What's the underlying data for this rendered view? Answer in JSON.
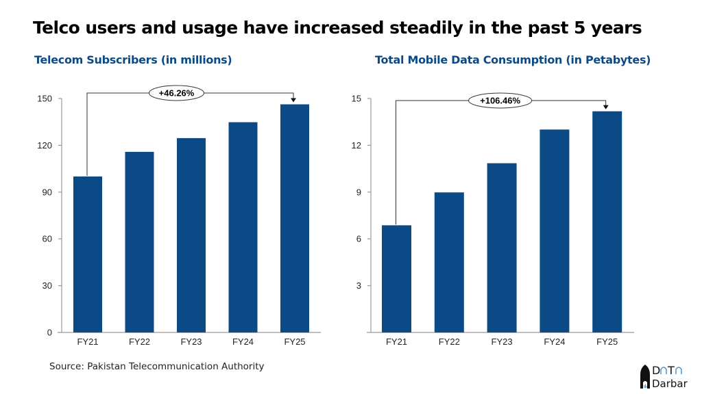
{
  "title": "Telco users and usage have increased steadily in the past 5 years",
  "source": "Source: Pakistan Telecommunication Authority",
  "logo": {
    "line1": "DaTa",
    "line2": "Darbar"
  },
  "colors": {
    "bar": "#0b4a86",
    "title_blue": "#0b4a86",
    "axis": "#999999"
  },
  "chart_data": [
    {
      "type": "bar",
      "title": "Telecom Subscribers (in millions)",
      "xlabel": "",
      "ylabel": "",
      "categories": [
        "FY21",
        "FY22",
        "FY23",
        "FY24",
        "FY25"
      ],
      "values": [
        100.0,
        115.8,
        124.6,
        134.8,
        146.26
      ],
      "ylim": [
        0,
        150
      ],
      "yticks": [
        0,
        30,
        60,
        90,
        120,
        150
      ],
      "ytick_labels": [
        "0",
        "30",
        "60",
        "90",
        "120",
        "150"
      ],
      "grid": false,
      "annotation": {
        "text": "+46.26%",
        "from": "FY21",
        "to": "FY25"
      }
    },
    {
      "type": "bar",
      "title": "Total Mobile Data Consumption (in Petabytes)",
      "xlabel": "",
      "ylabel": "",
      "categories": [
        "FY21",
        "FY22",
        "FY23",
        "FY24",
        "FY25"
      ],
      "values": [
        6.87,
        8.98,
        10.85,
        13.01,
        14.18
      ],
      "ylim": [
        0,
        15
      ],
      "yticks": [
        3,
        6,
        9,
        12,
        15
      ],
      "ytick_labels": [
        "3",
        "6",
        "9",
        "12",
        "15"
      ],
      "grid": false,
      "annotation": {
        "text": "+106.46%",
        "from": "FY21",
        "to": "FY25"
      }
    }
  ]
}
